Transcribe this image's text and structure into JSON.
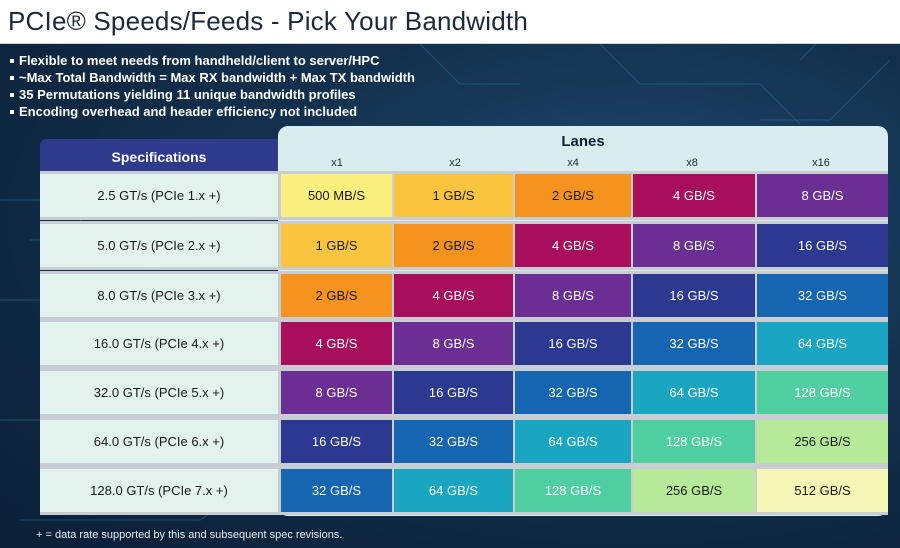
{
  "title": "PCIe® Speeds/Feeds - Pick Your Bandwidth",
  "bullets": [
    "Flexible to meet needs from handheld/client to server/HPC",
    "~Max Total Bandwidth = Max RX bandwidth + Max TX bandwidth",
    "35 Permutations yielding 11 unique bandwidth profiles",
    "Encoding overhead and header efficiency not included"
  ],
  "table": {
    "spec_header": "Specifications",
    "lanes_title": "Lanes",
    "lanes": [
      "x1",
      "x2",
      "x4",
      "x8",
      "x16"
    ],
    "rows": [
      {
        "spec": "2.5 GT/s (PCIe 1.x +)",
        "values": [
          "500 MB/S",
          "1 GB/S",
          "2 GB/S",
          "4 GB/S",
          "8 GB/S"
        ]
      },
      {
        "spec": "5.0 GT/s (PCIe 2.x +)",
        "values": [
          "1 GB/S",
          "2 GB/S",
          "4 GB/S",
          "8 GB/S",
          "16 GB/S"
        ]
      },
      {
        "spec": "8.0 GT/s (PCIe 3.x +)",
        "values": [
          "2 GB/S",
          "4 GB/S",
          "8 GB/S",
          "16 GB/S",
          "32 GB/S"
        ]
      },
      {
        "spec": "16.0 GT/s (PCIe 4.x +)",
        "values": [
          "4 GB/S",
          "8 GB/S",
          "16 GB/S",
          "32 GB/S",
          "64 GB/S"
        ]
      },
      {
        "spec": "32.0 GT/s (PCIe 5.x +)",
        "values": [
          "8 GB/S",
          "16 GB/S",
          "32 GB/S",
          "64 GB/S",
          "128 GB/S"
        ]
      },
      {
        "spec": "64.0 GT/s (PCIe 6.x +)",
        "values": [
          "16 GB/S",
          "32 GB/S",
          "64 GB/S",
          "128 GB/S",
          "256 GB/S"
        ]
      },
      {
        "spec": "128.0 GT/s (PCIe 7.x +)",
        "values": [
          "32 GB/S",
          "64 GB/S",
          "128 GB/S",
          "256 GB/S",
          "512 GB/S"
        ]
      }
    ]
  },
  "bandwidth_colors": {
    "500 MB/S": "#fbf07d",
    "1 GB/S": "#fbc43f",
    "2 GB/S": "#f6921e",
    "4 GB/S": "#a70e5b",
    "8 GB/S": "#6b2f93",
    "16 GB/S": "#2b3990",
    "32 GB/S": "#1565b0",
    "64 GB/S": "#1aa5c0",
    "128 GB/S": "#4fcf9f",
    "256 GB/S": "#b4ea98",
    "512 GB/S": "#f3f6b4"
  },
  "dark_text_values": [
    "500 MB/S",
    "1 GB/S",
    "2 GB/S",
    "256 GB/S",
    "512 GB/S"
  ],
  "footnote": "+ = data rate supported by this and subsequent spec revisions."
}
